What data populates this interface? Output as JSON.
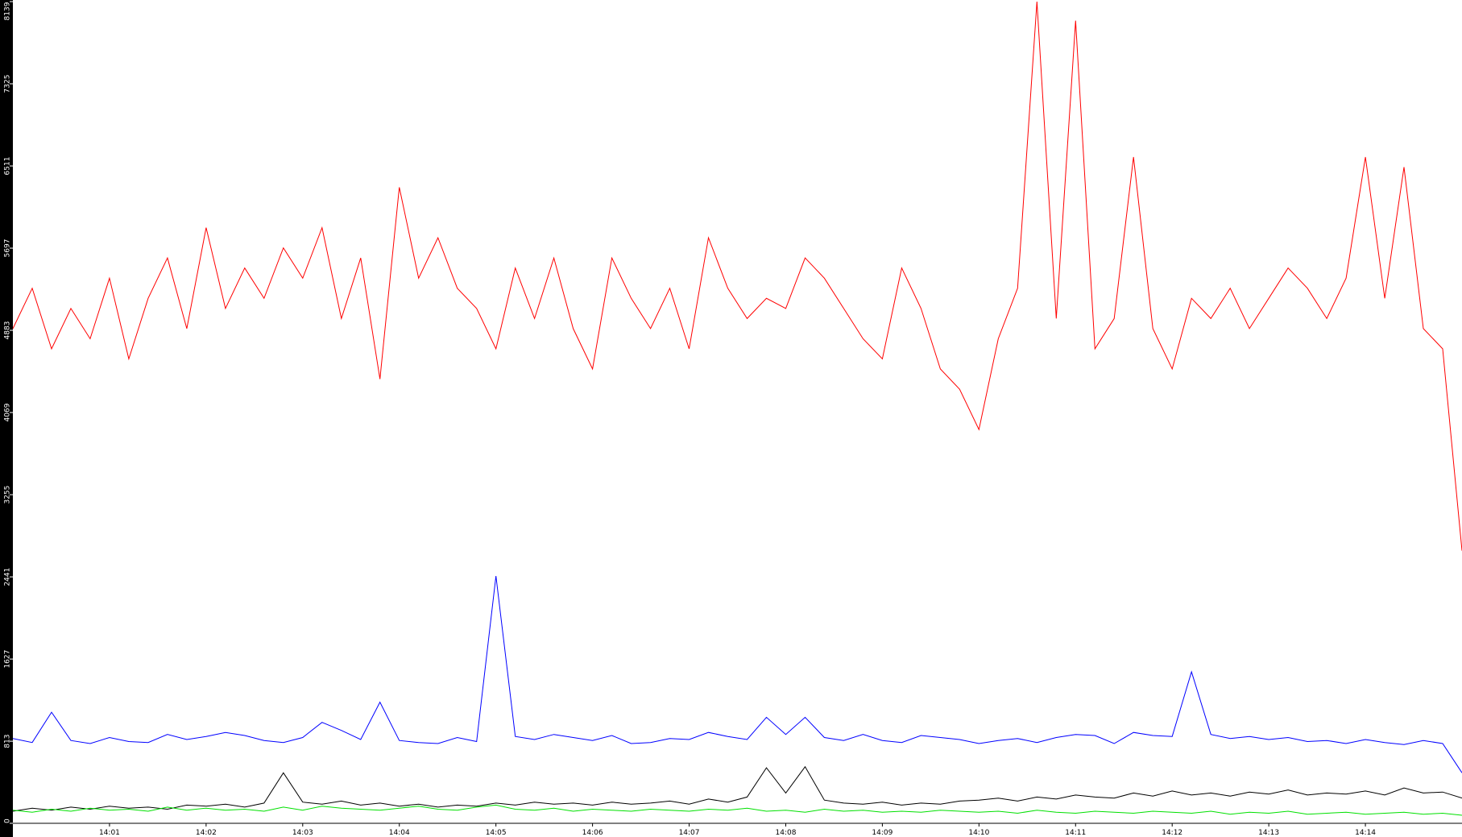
{
  "chart_data": {
    "type": "line",
    "x": [
      0,
      0.2,
      0.4,
      0.6,
      0.8,
      1,
      1.2,
      1.4,
      1.6,
      1.8,
      2,
      2.2,
      2.4,
      2.6,
      2.8,
      3,
      3.2,
      3.4,
      3.6,
      3.8,
      4,
      4.2,
      4.4,
      4.6,
      4.8,
      5,
      5.2,
      5.4,
      5.6,
      5.8,
      6,
      6.2,
      6.4,
      6.6,
      6.8,
      7,
      7.2,
      7.4,
      7.6,
      7.8,
      8,
      8.2,
      8.4,
      8.6,
      8.8,
      9,
      9.2,
      9.4,
      9.6,
      9.8,
      10,
      10.2,
      10.4,
      10.6,
      10.8,
      11,
      11.2,
      11.4,
      11.6,
      11.8,
      12,
      12.2,
      12.4,
      12.6,
      12.8,
      13,
      13.2,
      13.4,
      13.6,
      13.8,
      14,
      14.2,
      14.4,
      14.6,
      14.8,
      15
    ],
    "xlim": [
      0,
      15
    ],
    "xticks": [
      {
        "value": 1,
        "label": "14:01"
      },
      {
        "value": 2,
        "label": "14:02"
      },
      {
        "value": 3,
        "label": "14:03"
      },
      {
        "value": 4,
        "label": "14:04"
      },
      {
        "value": 5,
        "label": "14:05"
      },
      {
        "value": 6,
        "label": "14:06"
      },
      {
        "value": 7,
        "label": "14:07"
      },
      {
        "value": 8,
        "label": "14:08"
      },
      {
        "value": 9,
        "label": "14:09"
      },
      {
        "value": 10,
        "label": "14:10"
      },
      {
        "value": 11,
        "label": "14:11"
      },
      {
        "value": 12,
        "label": "14:12"
      },
      {
        "value": 13,
        "label": "14:13"
      },
      {
        "value": 14,
        "label": "14:14"
      }
    ],
    "ylim": [
      0,
      8139
    ],
    "yticks": [
      0,
      813,
      1627,
      2441,
      3255,
      4069,
      4883,
      5697,
      6511,
      7325,
      8139
    ],
    "series": [
      {
        "color": "#ff0000",
        "values": [
          4900,
          5300,
          4700,
          5100,
          4800,
          5400,
          4600,
          5200,
          5600,
          4900,
          5900,
          5100,
          5500,
          5200,
          5700,
          5400,
          5900,
          5000,
          5600,
          4400,
          6300,
          5400,
          5800,
          5300,
          5100,
          4700,
          5500,
          5000,
          5600,
          4900,
          4500,
          5600,
          5200,
          4900,
          5300,
          4700,
          5800,
          5300,
          5000,
          5200,
          5100,
          5600,
          5400,
          5100,
          4800,
          4600,
          5500,
          5100,
          4500,
          4300,
          3900,
          4800,
          5300,
          8139,
          5000,
          7950,
          4700,
          5000,
          6600,
          4900,
          4500,
          5200,
          5000,
          5300,
          4900,
          5200,
          5500,
          5300,
          5000,
          5400,
          6600,
          5200,
          6500,
          4900,
          4700,
          2700
        ]
      },
      {
        "color": "#0000ff",
        "values": [
          840,
          800,
          1100,
          820,
          790,
          850,
          810,
          800,
          880,
          830,
          860,
          900,
          870,
          820,
          800,
          850,
          1000,
          920,
          830,
          1200,
          820,
          800,
          790,
          850,
          810,
          2450,
          860,
          830,
          880,
          850,
          820,
          870,
          790,
          800,
          840,
          830,
          900,
          860,
          830,
          1050,
          880,
          1050,
          850,
          820,
          880,
          820,
          800,
          870,
          850,
          830,
          790,
          820,
          840,
          800,
          850,
          880,
          870,
          790,
          900,
          870,
          860,
          1500,
          880,
          840,
          860,
          830,
          850,
          810,
          820,
          790,
          830,
          800,
          780,
          820,
          790,
          500
        ]
      },
      {
        "color": "#000000",
        "values": [
          120,
          150,
          130,
          160,
          140,
          170,
          150,
          160,
          140,
          180,
          170,
          190,
          160,
          200,
          500,
          210,
          190,
          220,
          180,
          200,
          170,
          190,
          160,
          180,
          170,
          200,
          180,
          210,
          190,
          200,
          180,
          210,
          190,
          200,
          220,
          190,
          240,
          210,
          260,
          550,
          300,
          560,
          230,
          200,
          190,
          210,
          180,
          200,
          190,
          220,
          230,
          250,
          220,
          260,
          240,
          280,
          260,
          250,
          300,
          270,
          320,
          280,
          300,
          270,
          310,
          290,
          330,
          280,
          300,
          290,
          320,
          280,
          350,
          300,
          310,
          250
        ]
      },
      {
        "color": "#00e000",
        "values": [
          130,
          110,
          140,
          120,
          150,
          130,
          140,
          120,
          160,
          130,
          150,
          130,
          140,
          120,
          160,
          130,
          170,
          150,
          140,
          130,
          150,
          170,
          140,
          130,
          160,
          180,
          140,
          130,
          150,
          120,
          140,
          130,
          120,
          140,
          130,
          120,
          140,
          130,
          150,
          120,
          130,
          110,
          140,
          120,
          130,
          110,
          120,
          110,
          130,
          120,
          110,
          120,
          100,
          130,
          110,
          100,
          120,
          110,
          100,
          120,
          110,
          100,
          120,
          90,
          110,
          100,
          120,
          90,
          100,
          110,
          90,
          100,
          110,
          90,
          100,
          80
        ]
      }
    ]
  }
}
